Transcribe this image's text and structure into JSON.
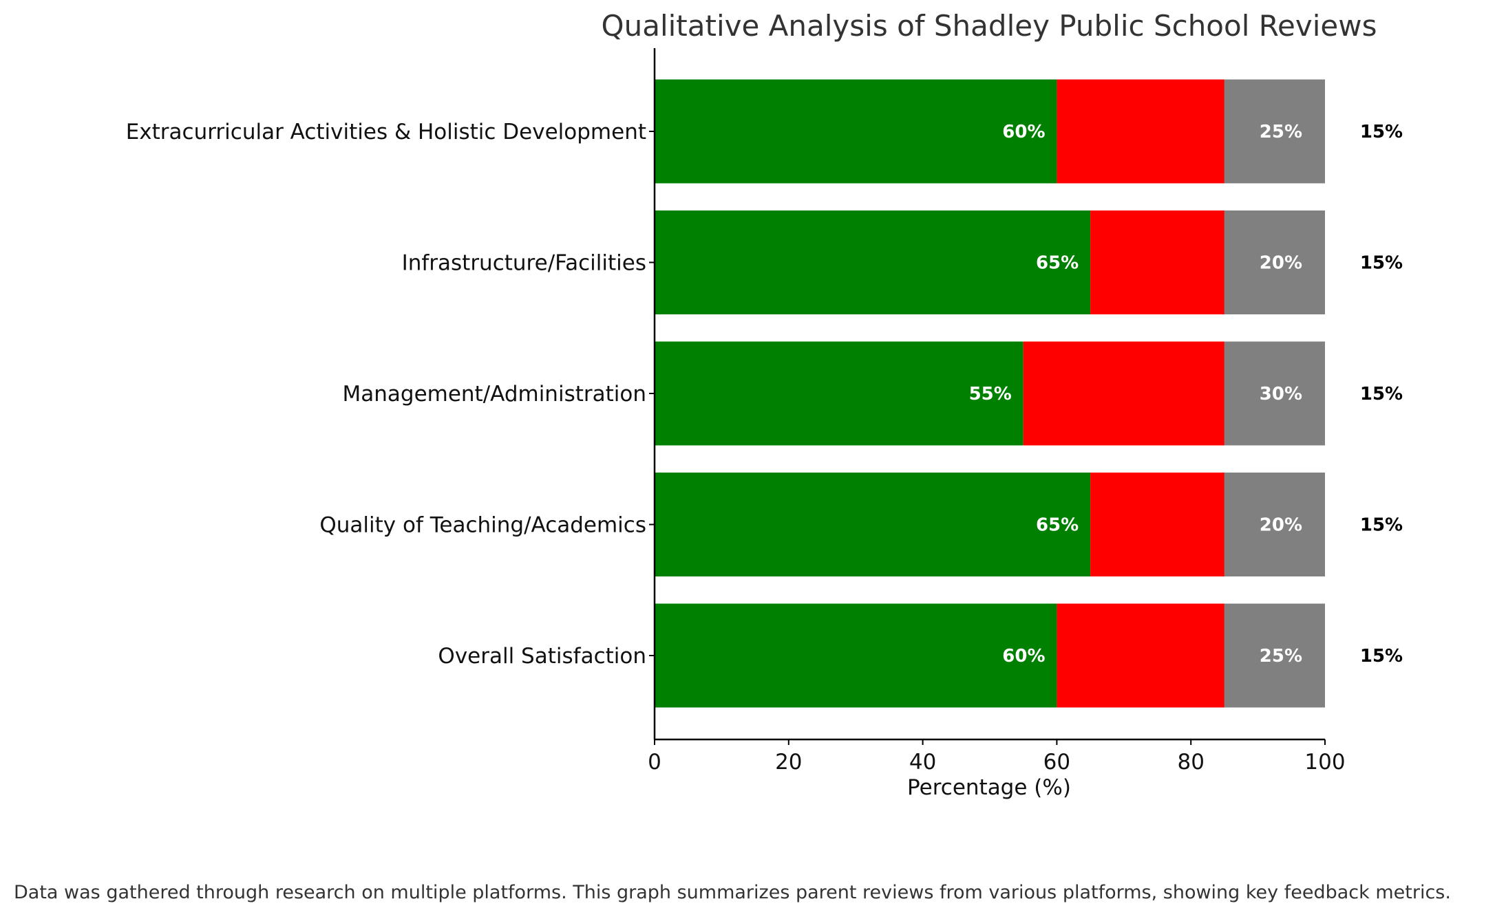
{
  "chart_data": {
    "type": "bar",
    "orientation": "horizontal",
    "stacked": true,
    "title": "Qualitative Analysis of Shadley Public School Reviews",
    "xlabel": "Percentage (%)",
    "ylabel": "",
    "xlim": [
      0,
      100
    ],
    "xticks": [
      "0",
      "20",
      "40",
      "60",
      "80",
      "100"
    ],
    "categories": [
      "Overall Satisfaction",
      "Quality of Teaching/Academics",
      "Management/Administration",
      "Infrastructure/Facilities",
      "Extracurricular Activities & Holistic Development"
    ],
    "series": [
      {
        "values": [
          60,
          65,
          55,
          65,
          60
        ],
        "color": "#008000"
      },
      {
        "values": [
          25,
          20,
          30,
          20,
          25
        ],
        "color": "#ff0000"
      },
      {
        "values": [
          15,
          15,
          15,
          15,
          15
        ],
        "color": "#808080"
      }
    ],
    "labels": {
      "first": [
        "60%",
        "65%",
        "55%",
        "65%",
        "60%"
      ],
      "second": [
        "25%",
        "20%",
        "30%",
        "20%",
        "25%"
      ],
      "third": [
        "15%",
        "15%",
        "15%",
        "15%",
        "15%"
      ]
    },
    "grid": false,
    "legend": "none"
  },
  "footnote": "Data was gathered through research on multiple platforms. This graph summarizes parent reviews from various platforms, showing key feedback metrics."
}
